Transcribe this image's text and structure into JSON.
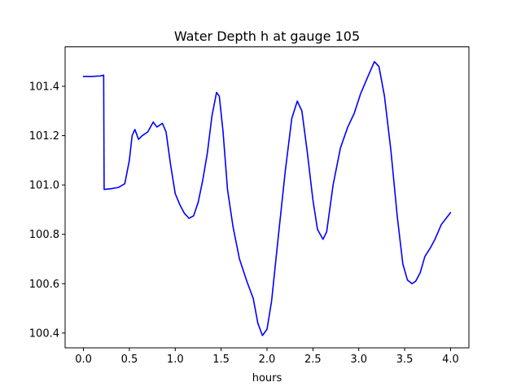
{
  "chart_data": {
    "type": "line",
    "title": "Water Depth h at gauge 105",
    "xlabel": "hours",
    "ylabel": "",
    "xlim": [
      -0.2,
      4.2
    ],
    "ylim": [
      100.34,
      101.56
    ],
    "x_ticks": [
      0.0,
      0.5,
      1.0,
      1.5,
      2.0,
      2.5,
      3.0,
      3.5,
      4.0
    ],
    "x_tick_labels": [
      "0.0",
      "0.5",
      "1.0",
      "1.5",
      "2.0",
      "2.5",
      "3.0",
      "3.5",
      "4.0"
    ],
    "y_ticks": [
      100.4,
      100.6,
      100.8,
      101.0,
      101.2,
      101.4
    ],
    "y_tick_labels": [
      "100.4",
      "100.6",
      "100.8",
      "101.0",
      "101.2",
      "101.4"
    ],
    "grid": false,
    "series": [
      {
        "color": "#0000ff",
        "points": [
          [
            0.0,
            101.44
          ],
          [
            0.1,
            101.44
          ],
          [
            0.18,
            101.442
          ],
          [
            0.22,
            101.445
          ],
          [
            0.225,
            100.982
          ],
          [
            0.3,
            100.985
          ],
          [
            0.38,
            100.99
          ],
          [
            0.45,
            101.005
          ],
          [
            0.5,
            101.1
          ],
          [
            0.53,
            101.2
          ],
          [
            0.56,
            101.225
          ],
          [
            0.6,
            101.185
          ],
          [
            0.64,
            101.2
          ],
          [
            0.7,
            101.215
          ],
          [
            0.76,
            101.255
          ],
          [
            0.8,
            101.235
          ],
          [
            0.86,
            101.25
          ],
          [
            0.9,
            101.215
          ],
          [
            0.95,
            101.08
          ],
          [
            1.0,
            100.965
          ],
          [
            1.05,
            100.92
          ],
          [
            1.1,
            100.885
          ],
          [
            1.15,
            100.865
          ],
          [
            1.2,
            100.875
          ],
          [
            1.25,
            100.93
          ],
          [
            1.3,
            101.02
          ],
          [
            1.35,
            101.13
          ],
          [
            1.4,
            101.28
          ],
          [
            1.45,
            101.375
          ],
          [
            1.48,
            101.36
          ],
          [
            1.52,
            101.22
          ],
          [
            1.57,
            100.98
          ],
          [
            1.63,
            100.83
          ],
          [
            1.7,
            100.7
          ],
          [
            1.78,
            100.61
          ],
          [
            1.85,
            100.54
          ],
          [
            1.9,
            100.44
          ],
          [
            1.95,
            100.39
          ],
          [
            2.0,
            100.415
          ],
          [
            2.05,
            100.53
          ],
          [
            2.12,
            100.78
          ],
          [
            2.2,
            101.06
          ],
          [
            2.27,
            101.27
          ],
          [
            2.33,
            101.34
          ],
          [
            2.38,
            101.3
          ],
          [
            2.44,
            101.13
          ],
          [
            2.5,
            100.94
          ],
          [
            2.55,
            100.82
          ],
          [
            2.61,
            100.78
          ],
          [
            2.65,
            100.81
          ],
          [
            2.72,
            101.0
          ],
          [
            2.8,
            101.15
          ],
          [
            2.88,
            101.235
          ],
          [
            2.95,
            101.29
          ],
          [
            3.02,
            101.37
          ],
          [
            3.1,
            101.44
          ],
          [
            3.17,
            101.5
          ],
          [
            3.22,
            101.48
          ],
          [
            3.28,
            101.36
          ],
          [
            3.35,
            101.14
          ],
          [
            3.42,
            100.87
          ],
          [
            3.48,
            100.68
          ],
          [
            3.53,
            100.615
          ],
          [
            3.58,
            100.6
          ],
          [
            3.62,
            100.61
          ],
          [
            3.67,
            100.645
          ],
          [
            3.72,
            100.71
          ],
          [
            3.78,
            100.745
          ],
          [
            3.83,
            100.78
          ],
          [
            3.9,
            100.84
          ],
          [
            4.0,
            100.888
          ]
        ]
      }
    ]
  }
}
